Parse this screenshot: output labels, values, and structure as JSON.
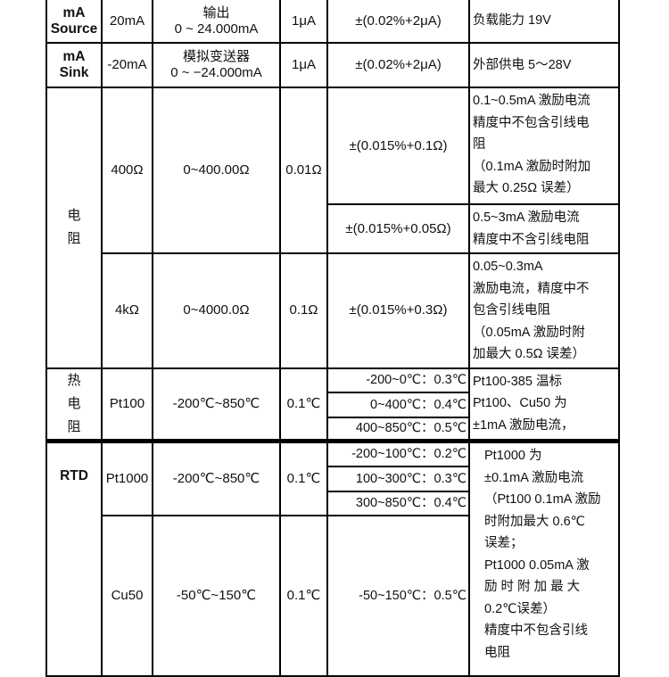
{
  "rows": {
    "ma_source": {
      "type": [
        "mA",
        "Source"
      ],
      "range": "20mA",
      "spec": [
        "输出",
        "0 ~ 24.000mA"
      ],
      "resolution": "1μA",
      "accuracy": "±(0.02%+2μA)",
      "note": "负载能力 19V"
    },
    "ma_sink": {
      "type": [
        "mA",
        "Sink"
      ],
      "range": "-20mA",
      "spec": [
        "模拟变送器",
        "0 ~ −24.000mA"
      ],
      "resolution": "1μA",
      "accuracy": "±(0.02%+2μA)",
      "note": "外部供电 5～28V"
    },
    "resistance": {
      "type": [
        "电",
        "阻"
      ],
      "r400": {
        "range": "400Ω",
        "spec": "0~400.00Ω",
        "resolution": "0.01Ω",
        "accuracy_1": "±(0.015%+0.1Ω)",
        "note_1": [
          "0.1~0.5mA 激励电流",
          "精度中不包含引线电",
          "阻",
          "（0.1mA 激励时附加",
          "最大 0.25Ω 误差）"
        ],
        "accuracy_2": "±(0.015%+0.05Ω)",
        "note_2": [
          "0.5~3mA 激励电流",
          "精度中不含引线电阻"
        ]
      },
      "r4k": {
        "range": "4kΩ",
        "spec": "0~4000.0Ω",
        "resolution": "0.1Ω",
        "accuracy": "±(0.015%+0.3Ω)",
        "note": [
          "0.05~0.3mA",
          "激励电流，精度中不",
          "包含引线电阻",
          "（0.05mA 激励时附",
          "加最大 0.5Ω 误差）"
        ]
      }
    },
    "thermal": {
      "type": [
        "热",
        "电",
        "阻"
      ],
      "range": "Pt100",
      "spec": "-200℃~850℃",
      "resolution": "0.1℃",
      "accuracy": [
        "-200~0℃：0.3℃",
        "0~400℃：0.4℃",
        "400~850℃：0.5℃"
      ],
      "note": [
        "Pt100-385 温标",
        "Pt100、Cu50 为",
        "±1mA 激励电流，"
      ]
    },
    "rtd": {
      "type": "RTD",
      "pt1000": {
        "range": "Pt1000",
        "spec": "-200℃~850℃",
        "resolution": "0.1℃",
        "accuracy": [
          "-200~100℃：0.2℃",
          "100~300℃：0.3℃",
          "300~850℃：0.4℃"
        ]
      },
      "cu50": {
        "range": "Cu50",
        "spec": "-50℃~150℃",
        "resolution": "0.1℃",
        "accuracy": "-50~150℃：0.5℃"
      },
      "note": [
        "Pt1000 为",
        "±0.1mA 激励电流",
        "（Pt100 0.1mA 激励",
        "时附加最大  0.6℃",
        "误差；",
        "Pt1000  0.05mA 激",
        "励 时 附 加 最 大",
        "0.2℃误差）",
        "精度中不包含引线",
        "电阻"
      ]
    }
  }
}
